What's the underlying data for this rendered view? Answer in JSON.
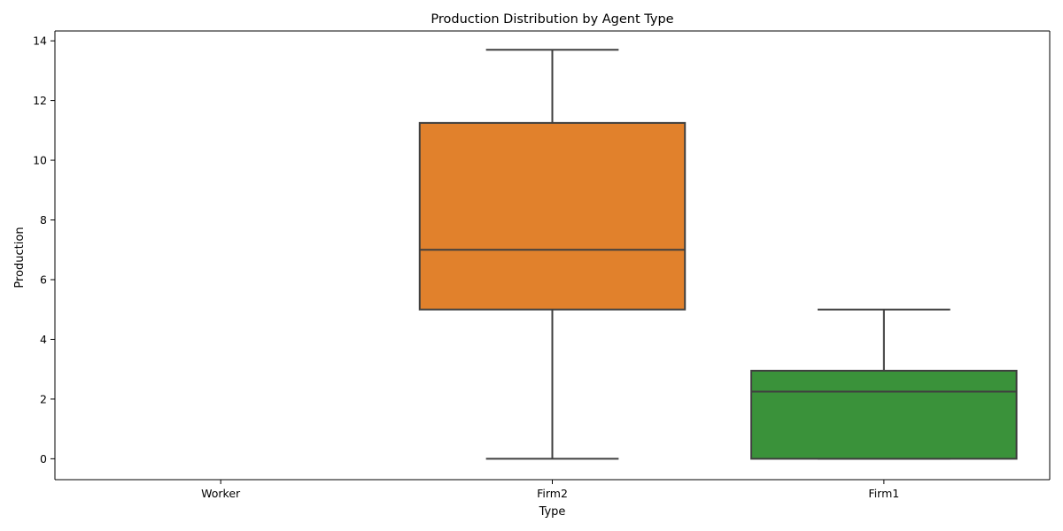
{
  "chart_data": {
    "type": "box",
    "title": "Production Distribution by Agent Type",
    "xlabel": "Type",
    "ylabel": "Production",
    "categories": [
      "Worker",
      "Firm2",
      "Firm1"
    ],
    "ylim": [
      -0.7,
      14.33
    ],
    "yticks": [
      0,
      2,
      4,
      6,
      8,
      10,
      12,
      14
    ],
    "grid": false,
    "legend": "none",
    "boxes": [
      {
        "category": "Worker",
        "min": null,
        "q1": null,
        "median": null,
        "q3": null,
        "max": null,
        "color": "#1f77b4"
      },
      {
        "category": "Firm2",
        "min": 0,
        "q1": 5.0,
        "median": 7.0,
        "q3": 11.25,
        "max": 13.7,
        "color": "#e1812c"
      },
      {
        "category": "Firm1",
        "min": 0,
        "q1": 0,
        "median": 2.25,
        "q3": 2.95,
        "max": 5.0,
        "color": "#3a923a"
      }
    ],
    "line_color": "#3f3f3f"
  }
}
